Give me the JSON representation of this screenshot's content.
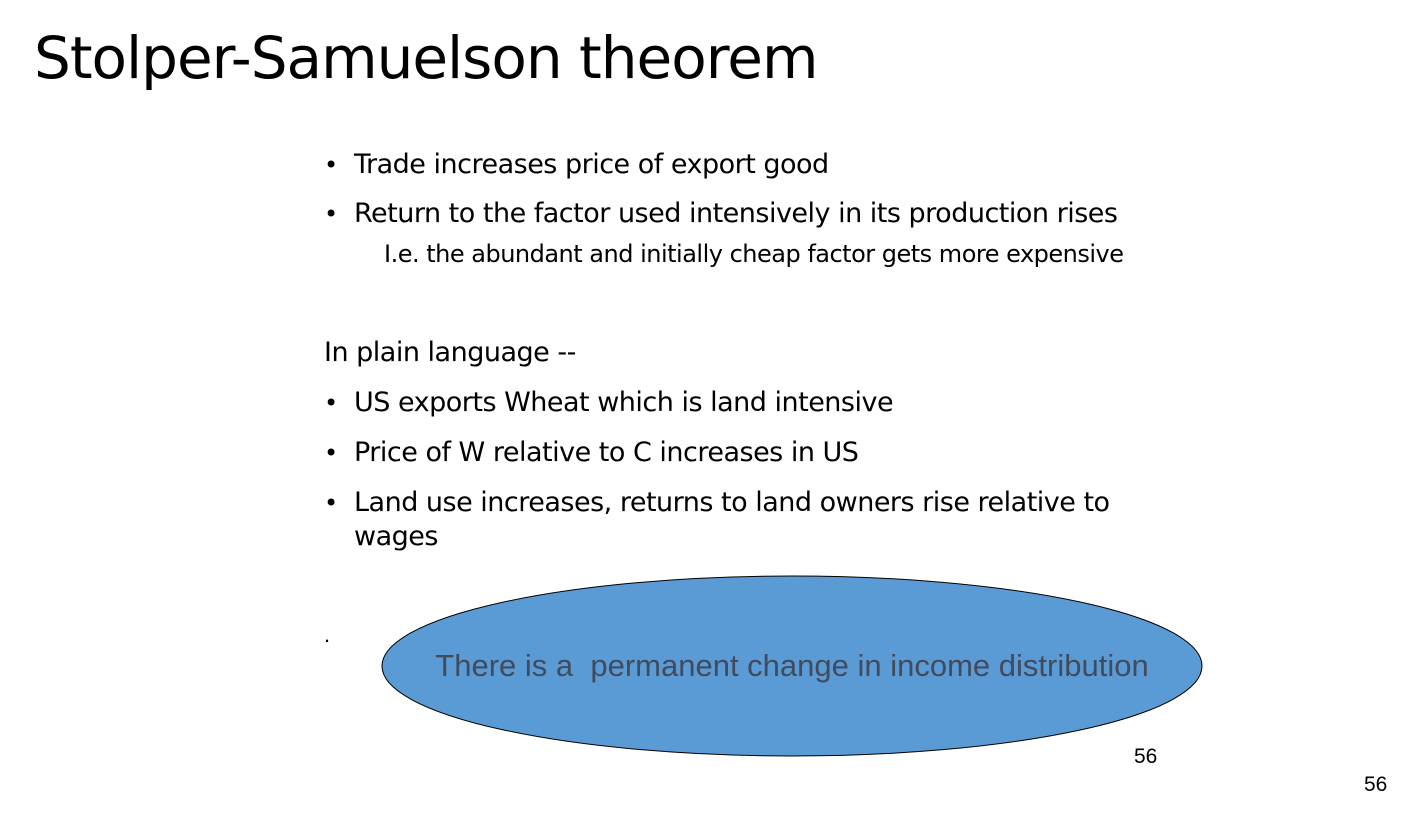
{
  "slide": {
    "title": "Stolper-Samuelson theorem",
    "bullets_top": [
      {
        "bullet": "•",
        "text": "Trade increases price of export good"
      },
      {
        "bullet": "•",
        "text": "Return to the factor used intensively in its production rises"
      }
    ],
    "sub_text": "I.e. the abundant and initially cheap factor gets more expensive",
    "plain_heading": "In plain language --",
    "bullets_bottom": [
      {
        "bullet": "•",
        "text": "US exports Wheat which is land intensive"
      },
      {
        "bullet": "•",
        "text": "Price of W relative to C increases in US"
      },
      {
        "bullet": "•",
        "text": "Land use increases, returns to land owners rise relative to wages"
      }
    ],
    "trailing_mark": ".",
    "callout": {
      "text": "There is a  permanent change in income distribution",
      "fill_color": "#5b9bd5",
      "stroke_color": "#000000",
      "text_color": "#404b5e"
    },
    "page_number_inner": "56",
    "page_number_outer": "56"
  }
}
